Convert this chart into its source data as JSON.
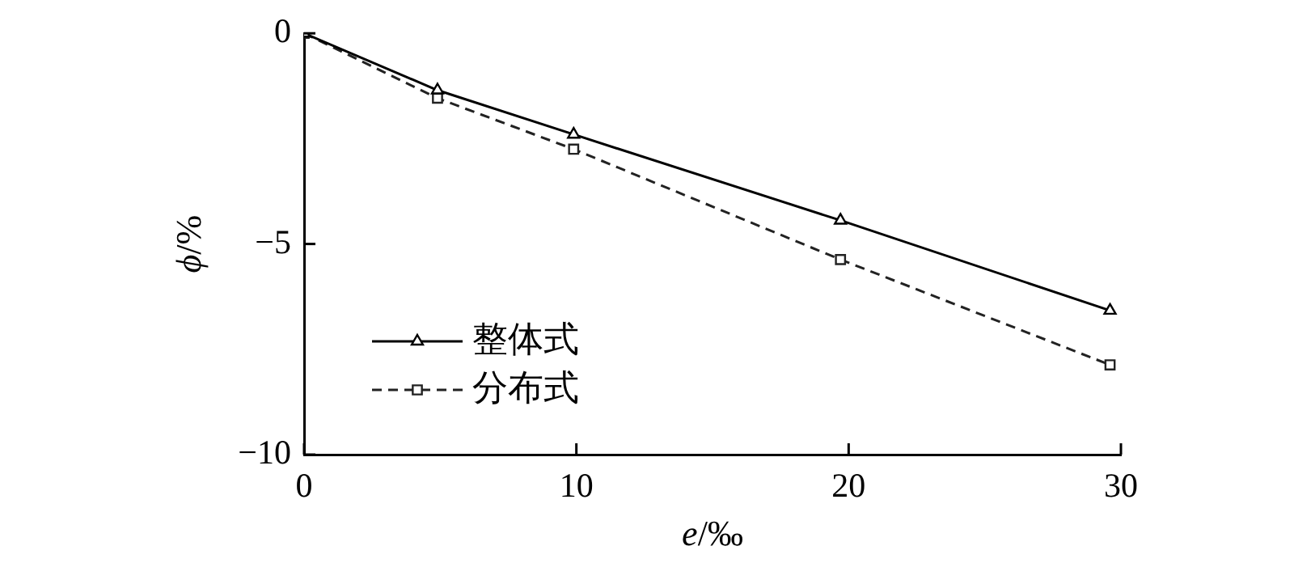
{
  "chart_data": {
    "type": "line",
    "xlabel": "e/‰",
    "ylabel": "ϕ/%",
    "xlim": [
      0,
      30
    ],
    "xticks": [
      0,
      10,
      20,
      30
    ],
    "ylim": [
      -10,
      0
    ],
    "yticks": [
      -10,
      -5,
      0
    ],
    "grid": false,
    "legend": "bottom left",
    "series": [
      {
        "name": "整体式",
        "color": "#000000",
        "marker": "triangle",
        "line_style": "solid",
        "x": [
          0,
          4.9,
          9.9,
          19.7,
          29.6
        ],
        "values": [
          0,
          -1.35,
          -2.4,
          -4.44,
          -6.58
        ]
      },
      {
        "name": "分布式",
        "color": "#222222",
        "marker": "square",
        "line_style": "dashed",
        "x": [
          0,
          4.9,
          9.9,
          19.7,
          29.6
        ],
        "values": [
          0,
          -1.54,
          -2.75,
          -5.37,
          -7.87
        ]
      }
    ]
  }
}
